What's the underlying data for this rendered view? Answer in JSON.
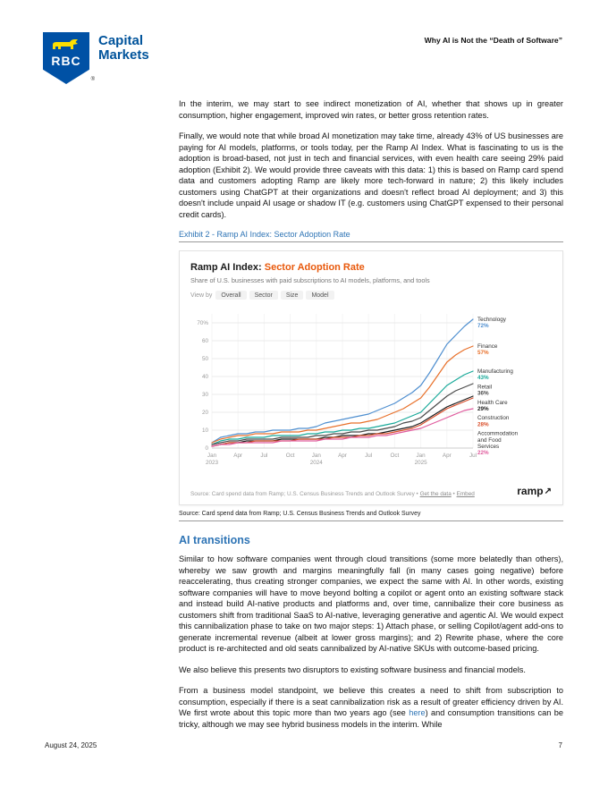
{
  "header": {
    "doc_title": "Why AI is Not the “Death of Software”",
    "brand": {
      "logo_text": "RBC",
      "registered": "®",
      "name_line1": "Capital",
      "name_line2": "Markets"
    }
  },
  "body": {
    "para1": "In the interim, we may start to see indirect monetization of AI, whether that shows up in greater consumption, higher engagement, improved win rates, or better gross retention rates.",
    "para2": "Finally, we would note that while broad AI monetization may take time, already 43% of US businesses are paying for AI models, platforms, or tools today, per the Ramp AI Index. What is fascinating to us is the adoption is broad-based, not just in tech and financial services, with even health care seeing 29% paid adoption (Exhibit 2). We would provide three caveats with this data: 1) this is based on Ramp card spend data and customers adopting Ramp are likely more tech-forward in nature; 2) this likely includes customers using ChatGPT at their organizations and doesn't reflect broad AI deployment; and 3) this doesn't include unpaid AI usage or shadow IT (e.g. customers using ChatGPT expensed to their personal credit cards).",
    "exhibit_caption": "Exhibit 2 - Ramp AI Index: Sector Adoption Rate",
    "exhibit_source": "Source: Card spend data from Ramp; U.S. Census Business Trends and Outlook Survey",
    "section_heading": "AI transitions",
    "para3": "Similar to how software companies went through cloud transitions (some more belatedly than others), whereby we saw growth and margins meaningfully fall (in many cases going negative) before reaccelerating, thus creating stronger companies, we expect the same with AI. In other words, existing software companies will have to move beyond bolting a copilot or agent onto an existing software stack and instead build AI-native products and platforms and, over time, cannibalize their core business as customers shift from traditional SaaS to AI-native, leveraging generative and agentic AI. We would expect this cannibalization phase to take on two major steps: 1) Attach phase, or selling Copilot/agent add-ons to generate incremental revenue (albeit at lower gross margins); and 2) Rewrite phase, where the core product is re-architected and old seats cannibalized by AI-native SKUs with outcome-based pricing.",
    "para4": "We also believe this presents two disruptors to existing software business and financial models.",
    "para5_pre": "From a business model standpoint, we believe this creates a need to shift from subscription to consumption, especially if there is a seat cannibalization risk as a result of greater efficiency driven by AI. We first wrote about this topic more than two years ago (see ",
    "para5_link": "here",
    "para5_post": ") and consumption transitions can be tricky, although we may see hybrid business models in the interim. While"
  },
  "footer": {
    "date": "August 24, 2025",
    "page_number": "7"
  },
  "chart_data": {
    "type": "line",
    "title_prefix": "Ramp AI Index:",
    "title_highlight": "Sector Adoption Rate",
    "subtitle": "Share of U.S. businesses with paid subscriptions to AI models, platforms, and tools",
    "view_by": {
      "label": "View by",
      "options": [
        "Overall",
        "Sector",
        "Size",
        "Model"
      ],
      "selected": "Sector"
    },
    "source_note": "Source: Card spend data from Ramp; U.S. Census Business Trends and Outlook Survey",
    "source_links": [
      "Get the data",
      "Embed"
    ],
    "brand": {
      "text": "ramp",
      "mark": "↗"
    },
    "ylim": [
      0,
      75
    ],
    "grid": true,
    "legend_position": "right",
    "yticks": [
      {
        "v": 70,
        "label": "70%"
      },
      {
        "v": 60,
        "label": "60"
      },
      {
        "v": 50,
        "label": "50"
      },
      {
        "v": 40,
        "label": "40"
      },
      {
        "v": 30,
        "label": "30"
      },
      {
        "v": 20,
        "label": "20"
      },
      {
        "v": 10,
        "label": "10"
      },
      {
        "v": 0,
        "label": "0"
      }
    ],
    "xticks": [
      {
        "m": 0,
        "label": "Jan",
        "year": "2023"
      },
      {
        "m": 3,
        "label": "Apr"
      },
      {
        "m": 6,
        "label": "Jul"
      },
      {
        "m": 9,
        "label": "Oct"
      },
      {
        "m": 12,
        "label": "Jan",
        "year": "2024"
      },
      {
        "m": 15,
        "label": "Apr"
      },
      {
        "m": 18,
        "label": "Jul"
      },
      {
        "m": 21,
        "label": "Oct"
      },
      {
        "m": 24,
        "label": "Jan",
        "year": "2025"
      },
      {
        "m": 27,
        "label": "Apr"
      },
      {
        "m": 30,
        "label": "Jul"
      }
    ],
    "x_unit": "month index from Jan 2023 to Jul 2025",
    "series": [
      {
        "name": "Technology",
        "label_lines": [
          "Technology"
        ],
        "pct_label": "72%",
        "color": "#4f8fd0",
        "values": [
          3,
          6,
          7,
          8,
          8,
          9,
          9,
          10,
          10,
          10,
          11,
          11,
          12,
          14,
          15,
          16,
          17,
          18,
          19,
          21,
          23,
          25,
          28,
          31,
          35,
          42,
          50,
          58,
          63,
          68,
          72
        ]
      },
      {
        "name": "Finance",
        "label_lines": [
          "Finance"
        ],
        "pct_label": "57%",
        "color": "#e8702a",
        "values": [
          3,
          5,
          6,
          7,
          7,
          8,
          8,
          8,
          9,
          9,
          9,
          10,
          10,
          11,
          12,
          13,
          14,
          14,
          15,
          16,
          18,
          20,
          22,
          25,
          28,
          34,
          41,
          48,
          52,
          55,
          57
        ]
      },
      {
        "name": "Manufacturing",
        "label_lines": [
          "Manufacturing"
        ],
        "pct_label": "43%",
        "color": "#18a999",
        "values": [
          2,
          4,
          5,
          5,
          6,
          6,
          6,
          7,
          7,
          7,
          7,
          8,
          8,
          9,
          9,
          10,
          10,
          11,
          11,
          12,
          13,
          14,
          16,
          18,
          20,
          25,
          30,
          35,
          38,
          41,
          43
        ]
      },
      {
        "name": "Retail",
        "label_lines": [
          "Retail"
        ],
        "pct_label": "36%",
        "color": "#4a4a4a",
        "values": [
          2,
          3,
          4,
          4,
          5,
          5,
          5,
          5,
          6,
          6,
          6,
          6,
          7,
          7,
          8,
          8,
          9,
          9,
          10,
          10,
          11,
          12,
          14,
          15,
          17,
          21,
          25,
          29,
          32,
          34,
          36
        ]
      },
      {
        "name": "Health Care",
        "label_lines": [
          "Health Care"
        ],
        "pct_label": "29%",
        "color": "#1a1a1a",
        "values": [
          1,
          2,
          3,
          3,
          4,
          4,
          4,
          4,
          5,
          5,
          5,
          5,
          5,
          6,
          6,
          7,
          7,
          7,
          8,
          8,
          9,
          10,
          11,
          12,
          14,
          17,
          20,
          23,
          25,
          27,
          29
        ]
      },
      {
        "name": "Construction",
        "label_lines": [
          "Construction"
        ],
        "pct_label": "28%",
        "color": "#d94f2b",
        "values": [
          1,
          2,
          3,
          3,
          3,
          4,
          4,
          4,
          4,
          4,
          5,
          5,
          5,
          5,
          6,
          6,
          6,
          7,
          7,
          8,
          8,
          9,
          10,
          11,
          13,
          16,
          19,
          22,
          24,
          26,
          28
        ]
      },
      {
        "name": "Accommodation and Food Services",
        "label_lines": [
          "Accommodation",
          "and Food",
          "Services"
        ],
        "pct_label": "22%",
        "color": "#e05c9e",
        "values": [
          1,
          2,
          2,
          3,
          3,
          3,
          3,
          3,
          4,
          4,
          4,
          4,
          4,
          5,
          5,
          5,
          6,
          6,
          6,
          7,
          7,
          8,
          9,
          10,
          11,
          13,
          15,
          17,
          19,
          21,
          22
        ]
      }
    ]
  }
}
